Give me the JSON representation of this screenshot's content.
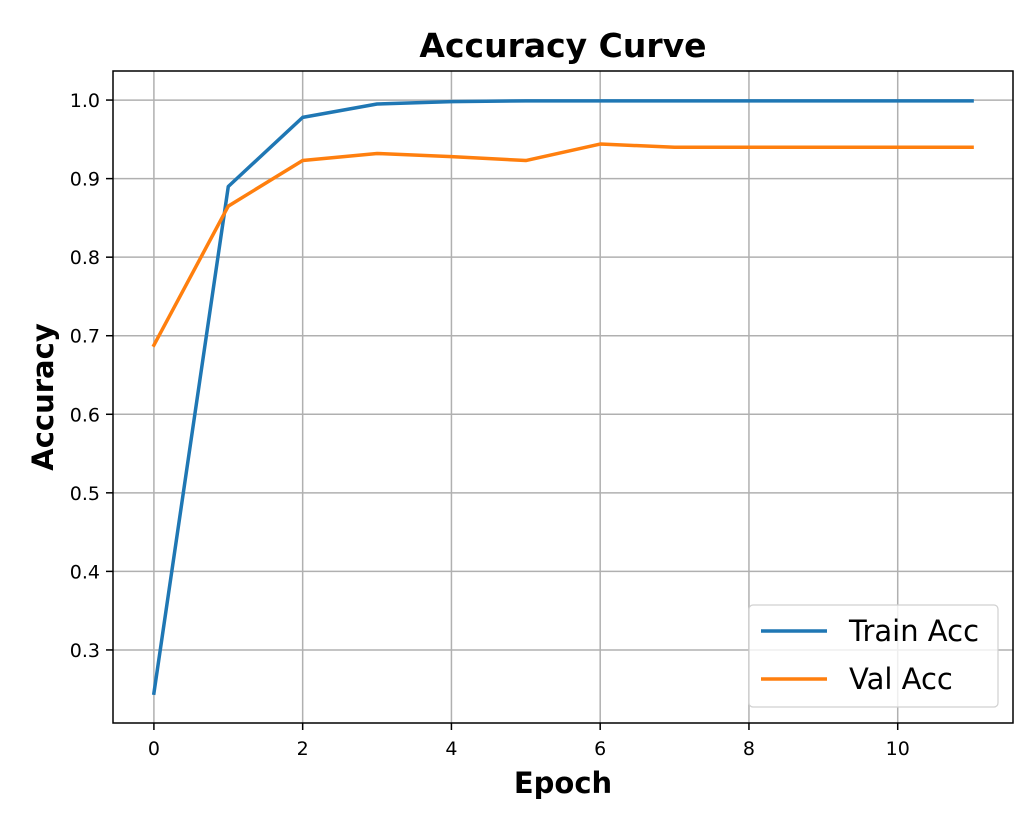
{
  "chart_data": {
    "type": "line",
    "title": "Accuracy Curve",
    "xlabel": "Epoch",
    "ylabel": "Accuracy",
    "x": [
      0,
      1,
      2,
      3,
      4,
      5,
      6,
      7,
      8,
      9,
      10,
      11
    ],
    "series": [
      {
        "name": "Train Acc",
        "color": "#1f77b4",
        "values": [
          0.245,
          0.89,
          0.978,
          0.995,
          0.998,
          0.999,
          0.999,
          0.999,
          0.999,
          0.999,
          0.999,
          0.999
        ]
      },
      {
        "name": "Val Acc",
        "color": "#ff7f0e",
        "values": [
          0.688,
          0.865,
          0.923,
          0.932,
          0.928,
          0.923,
          0.944,
          0.94,
          0.94,
          0.94,
          0.94,
          0.94
        ]
      }
    ],
    "xlim": [
      -0.55,
      11.55
    ],
    "ylim": [
      0.207,
      1.037
    ],
    "x_ticks": [
      0,
      2,
      4,
      6,
      8,
      10
    ],
    "x_tick_labels": [
      "0",
      "2",
      "4",
      "6",
      "8",
      "10"
    ],
    "y_ticks": [
      0.3,
      0.4,
      0.5,
      0.6,
      0.7,
      0.8,
      0.9,
      1.0
    ],
    "y_tick_labels": [
      "0.3",
      "0.4",
      "0.5",
      "0.6",
      "0.7",
      "0.8",
      "0.9",
      "1.0"
    ],
    "grid": true,
    "legend_position": "bottom-right"
  }
}
